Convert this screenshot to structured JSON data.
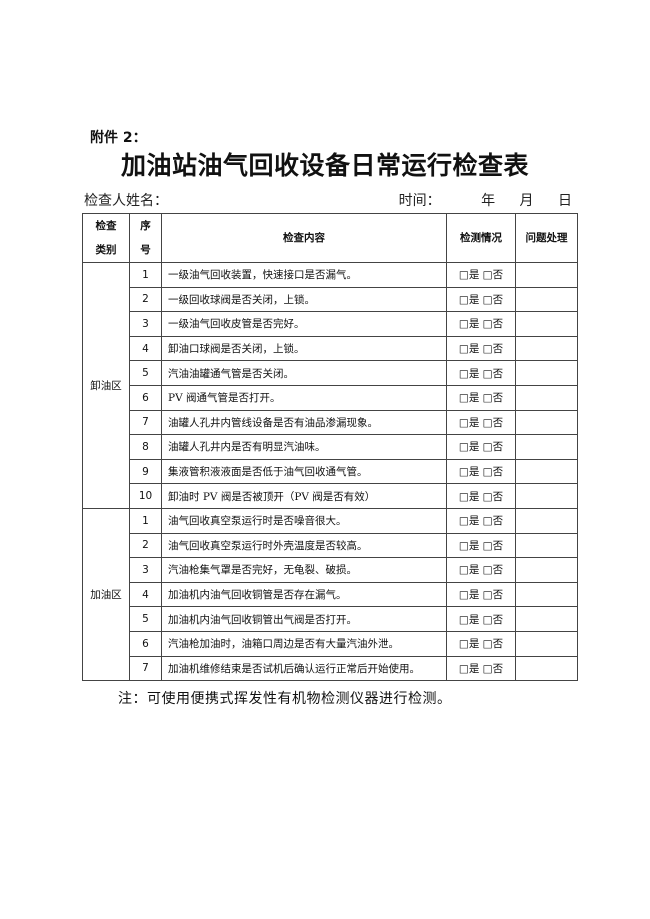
{
  "attachment": "附件 2：",
  "title": "加油站油气回收设备日常运行检查表",
  "inspector_label": "检查人姓名：",
  "time_label": "时间：",
  "year": "年",
  "month": "月",
  "day": "日",
  "headers": {
    "category": "检查类别",
    "category_l1": "检查",
    "category_l2": "类别",
    "no_l1": "序",
    "no_l2": "号",
    "content": "检查内容",
    "status": "检测情况",
    "handling": "问题处理"
  },
  "option_yes": "□是",
  "option_no": "□否",
  "sections": [
    {
      "name": "卸油区",
      "items": [
        "一级油气回收装置，快速接口是否漏气。",
        "一级回收球阀是否关闭，上锁。",
        "一级油气回收皮管是否完好。",
        "卸油口球阀是否关闭，上锁。",
        "汽油油罐通气管是否关闭。",
        "PV 阀通气管是否打开。",
        "油罐人孔井内管线设备是否有油品渗漏现象。",
        "油罐人孔井内是否有明显汽油味。",
        "集液管积液液面是否低于油气回收通气管。",
        "卸油时 PV 阀是否被顶开（PV 阀是否有效）"
      ]
    },
    {
      "name": "加油区",
      "items": [
        "油气回收真空泵运行时是否噪音很大。",
        "油气回收真空泵运行时外壳温度是否较高。",
        "汽油枪集气罩是否完好，无龟裂、破损。",
        "加油机内油气回收铜管是否存在漏气。",
        "加油机内油气回收铜管出气阀是否打开。",
        "汽油枪加油时，油箱口周边是否有大量汽油外泄。",
        "加油机维修结束是否试机后确认运行正常后开始使用。"
      ]
    }
  ],
  "note": "注：可使用便携式挥发性有机物检测仪器进行检测。"
}
